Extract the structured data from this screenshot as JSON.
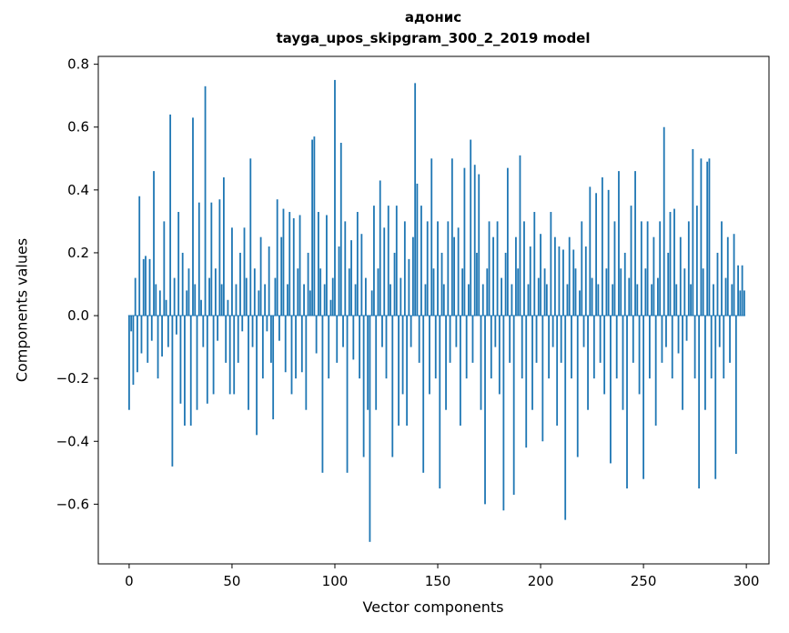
{
  "chart_data": {
    "type": "bar",
    "title": "адонис",
    "subtitle": "tayga_upos_skipgram_300_2_2019 model",
    "xlabel": "Vector components",
    "ylabel": "Components values",
    "xlim": [
      -15,
      311
    ],
    "ylim": [
      -0.79,
      0.825
    ],
    "x_ticks": [
      0,
      50,
      100,
      150,
      200,
      250,
      300
    ],
    "y_ticks": [
      -0.6,
      -0.4,
      -0.2,
      0.0,
      0.2,
      0.4,
      0.6,
      0.8
    ],
    "bar_color": "#1f77b4",
    "grid": false,
    "legend": "none",
    "values": [
      -0.3,
      -0.05,
      -0.22,
      0.12,
      -0.18,
      0.38,
      -0.12,
      0.18,
      0.19,
      -0.15,
      0.18,
      -0.08,
      0.46,
      0.1,
      -0.2,
      0.08,
      -0.13,
      0.3,
      0.05,
      -0.1,
      0.64,
      -0.48,
      0.12,
      -0.06,
      0.33,
      -0.28,
      0.2,
      -0.35,
      0.08,
      0.15,
      -0.35,
      0.63,
      0.1,
      -0.3,
      0.36,
      0.05,
      -0.1,
      0.73,
      -0.28,
      0.12,
      0.36,
      -0.25,
      0.15,
      -0.08,
      0.37,
      0.1,
      0.44,
      -0.15,
      0.05,
      -0.25,
      0.28,
      -0.25,
      0.1,
      -0.15,
      0.2,
      -0.05,
      0.28,
      0.12,
      -0.3,
      0.5,
      -0.1,
      0.15,
      -0.38,
      0.08,
      0.25,
      -0.2,
      0.1,
      -0.05,
      0.22,
      -0.15,
      -0.33,
      0.12,
      0.37,
      -0.08,
      0.25,
      0.34,
      -0.18,
      0.1,
      0.33,
      -0.25,
      0.31,
      -0.2,
      0.15,
      0.32,
      -0.18,
      0.1,
      -0.3,
      0.2,
      0.08,
      0.56,
      0.57,
      -0.12,
      0.33,
      0.15,
      -0.5,
      0.1,
      0.32,
      -0.2,
      0.05,
      0.12,
      0.75,
      -0.15,
      0.22,
      0.55,
      -0.1,
      0.3,
      -0.5,
      0.15,
      0.24,
      -0.14,
      0.1,
      0.33,
      -0.2,
      0.26,
      -0.45,
      0.12,
      -0.3,
      -0.72,
      0.08,
      0.35,
      -0.3,
      0.15,
      0.43,
      -0.1,
      0.28,
      -0.2,
      0.35,
      0.1,
      -0.45,
      0.2,
      0.35,
      -0.35,
      0.12,
      -0.25,
      0.3,
      -0.35,
      0.18,
      -0.1,
      0.25,
      0.74,
      0.42,
      -0.15,
      0.35,
      -0.5,
      0.1,
      0.3,
      -0.25,
      0.5,
      0.15,
      -0.2,
      0.3,
      -0.55,
      0.2,
      0.1,
      -0.3,
      0.3,
      -0.15,
      0.5,
      0.25,
      -0.1,
      0.28,
      -0.35,
      0.15,
      0.47,
      -0.2,
      0.1,
      0.56,
      -0.15,
      0.48,
      0.2,
      0.45,
      -0.3,
      0.1,
      -0.6,
      0.15,
      0.3,
      -0.2,
      0.25,
      -0.1,
      0.3,
      -0.25,
      0.12,
      -0.62,
      0.2,
      0.47,
      -0.15,
      0.1,
      -0.57,
      0.25,
      0.15,
      0.51,
      -0.2,
      0.3,
      -0.42,
      0.1,
      0.22,
      -0.3,
      0.33,
      -0.15,
      0.12,
      0.26,
      -0.4,
      0.15,
      0.1,
      -0.2,
      0.33,
      -0.1,
      0.25,
      -0.35,
      0.22,
      -0.15,
      0.21,
      -0.65,
      0.1,
      0.25,
      -0.2,
      0.21,
      0.15,
      -0.45,
      0.08,
      0.3,
      -0.1,
      0.22,
      -0.3,
      0.41,
      0.12,
      -0.2,
      0.39,
      0.1,
      -0.15,
      0.44,
      -0.25,
      0.15,
      0.4,
      -0.47,
      0.1,
      0.3,
      -0.2,
      0.46,
      0.15,
      -0.3,
      0.2,
      -0.55,
      0.12,
      0.35,
      -0.15,
      0.46,
      0.1,
      -0.25,
      0.3,
      -0.52,
      0.15,
      0.3,
      -0.2,
      0.1,
      0.25,
      -0.35,
      0.12,
      0.3,
      -0.15,
      0.6,
      -0.1,
      0.2,
      0.33,
      -0.2,
      0.34,
      0.1,
      -0.12,
      0.25,
      -0.3,
      0.15,
      -0.08,
      0.3,
      0.1,
      0.53,
      -0.2,
      0.35,
      -0.55,
      0.5,
      0.15,
      -0.3,
      0.49,
      0.5,
      -0.2,
      0.1,
      -0.52,
      0.2,
      -0.1,
      0.3,
      -0.2,
      0.12,
      0.25,
      -0.15,
      0.1,
      0.26,
      -0.44,
      0.16,
      0.08,
      0.16,
      0.08
    ]
  }
}
